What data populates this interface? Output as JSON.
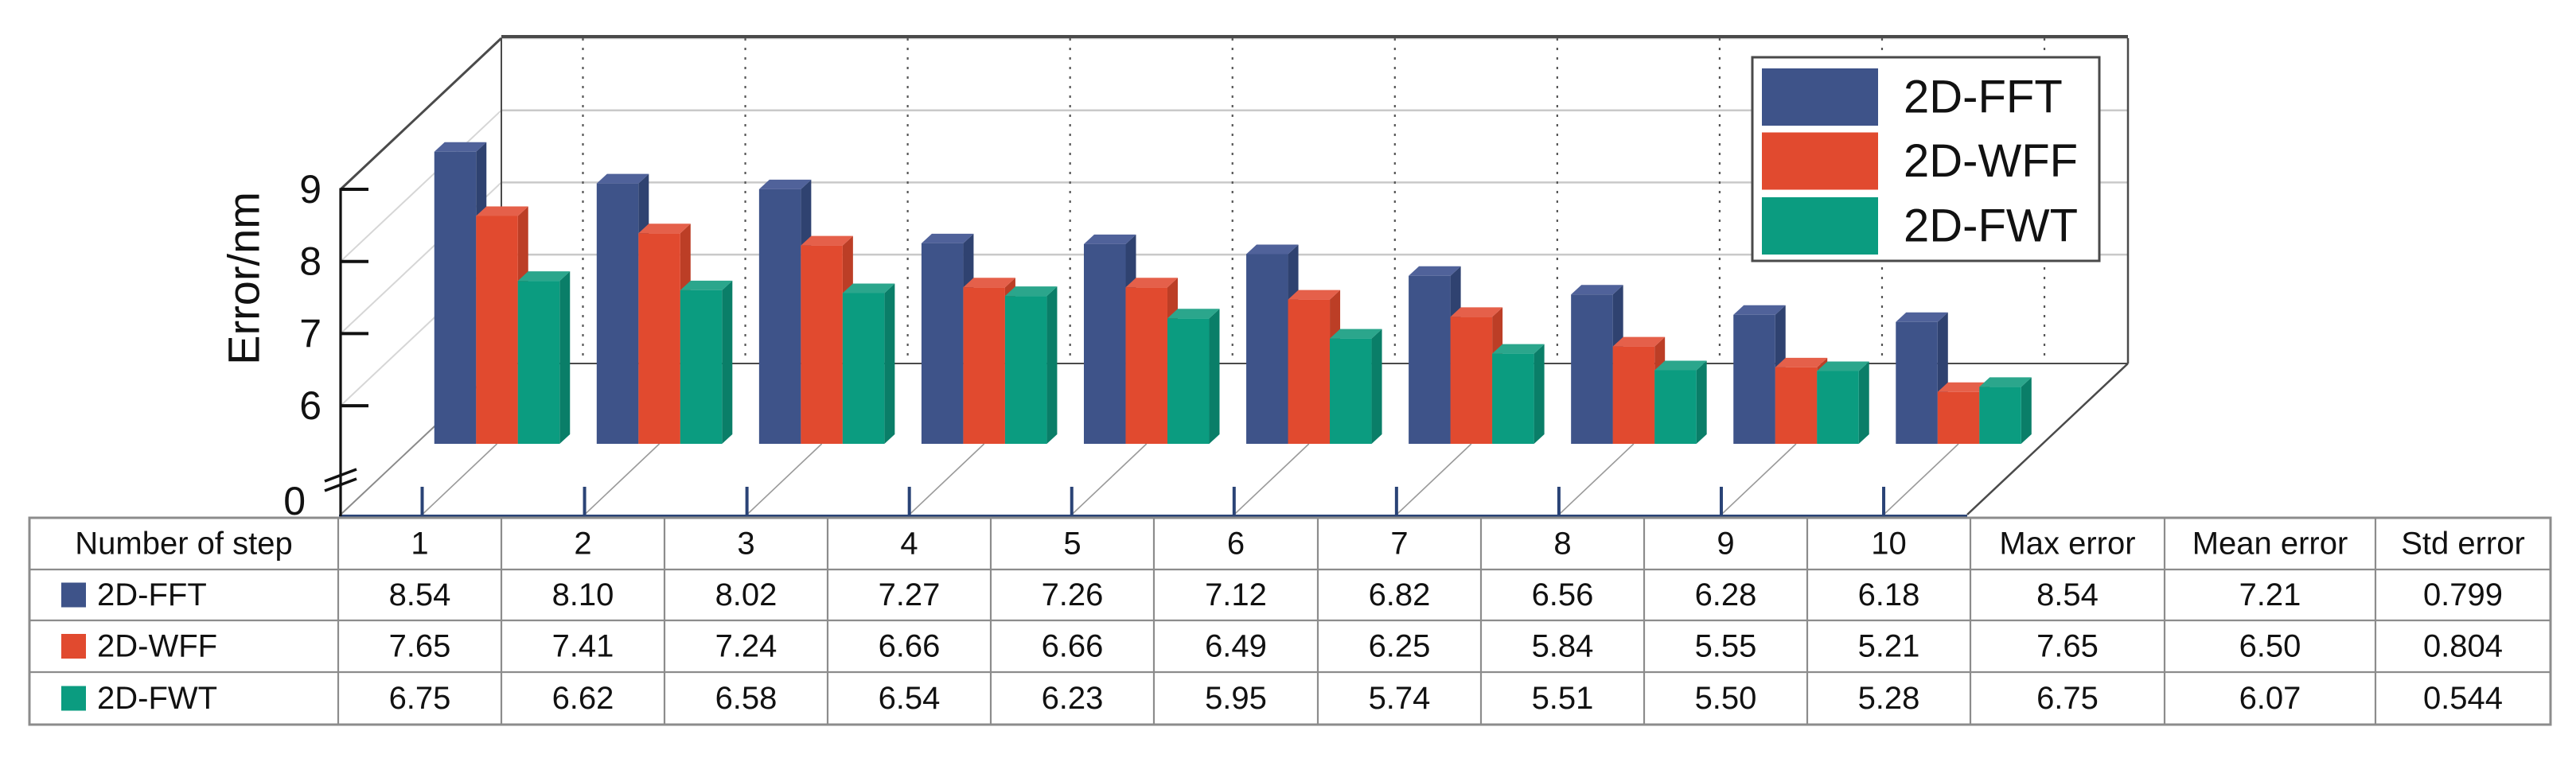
{
  "figure": {
    "background": "#ffffff",
    "accent_navy": "#2A4376"
  },
  "y_axis": {
    "title": "Error/nm",
    "ticks": [
      {
        "value": 9,
        "label": "9"
      },
      {
        "value": 8,
        "label": "8"
      },
      {
        "value": 7,
        "label": "7"
      },
      {
        "value": 6,
        "label": "6"
      }
    ],
    "zero_label": "0",
    "has_break": true
  },
  "chart_data": {
    "type": "bar",
    "projection": "3d",
    "title": "",
    "xlabel": "",
    "ylabel": "Error/nm",
    "categories": [
      "1",
      "2",
      "3",
      "4",
      "5",
      "6",
      "7",
      "8",
      "9",
      "10"
    ],
    "ylim": [
      0,
      9
    ],
    "y_break_below": 6,
    "grid": true,
    "legend_position": "top-right",
    "series": [
      {
        "name": "2D-FFT",
        "color": "#3E5389",
        "color_top": "#50629A",
        "color_side": "#2F4270",
        "values": [
          8.54,
          8.1,
          8.02,
          7.27,
          7.26,
          7.12,
          6.82,
          6.56,
          6.28,
          6.18
        ]
      },
      {
        "name": "2D-WFF",
        "color": "#E14A2F",
        "color_top": "#E5604A",
        "color_side": "#BC3E26",
        "values": [
          7.65,
          7.41,
          7.24,
          6.66,
          6.66,
          6.49,
          6.25,
          5.84,
          5.55,
          5.21
        ]
      },
      {
        "name": "2D-FWT",
        "color": "#0B9C80",
        "color_top": "#2BA68C",
        "color_side": "#0A7E68",
        "values": [
          6.75,
          6.62,
          6.58,
          6.54,
          6.23,
          5.95,
          5.74,
          5.51,
          5.5,
          5.28
        ]
      }
    ]
  },
  "table": {
    "row_header": "Number of step",
    "step_columns": [
      "1",
      "2",
      "3",
      "4",
      "5",
      "6",
      "7",
      "8",
      "9",
      "10"
    ],
    "stat_columns": [
      "Max error",
      "Mean error",
      "Std error"
    ],
    "rows": [
      {
        "label": "2D-FFT",
        "swatch": "#3E5389",
        "values": [
          "8.54",
          "8.10",
          "8.02",
          "7.27",
          "7.26",
          "7.12",
          "6.82",
          "6.56",
          "6.28",
          "6.18"
        ],
        "max": "8.54",
        "mean": "7.21",
        "std": "0.799"
      },
      {
        "label": "2D-WFF",
        "swatch": "#E14A2F",
        "values": [
          "7.65",
          "7.41",
          "7.24",
          "6.66",
          "6.66",
          "6.49",
          "6.25",
          "5.84",
          "5.55",
          "5.21"
        ],
        "max": "7.65",
        "mean": "6.50",
        "std": "0.804"
      },
      {
        "label": "2D-FWT",
        "swatch": "#0B9C80",
        "values": [
          "6.75",
          "6.62",
          "6.58",
          "6.54",
          "6.23",
          "5.95",
          "5.74",
          "5.51",
          "5.50",
          "5.28"
        ],
        "max": "6.75",
        "mean": "6.07",
        "std": "0.544"
      }
    ]
  }
}
